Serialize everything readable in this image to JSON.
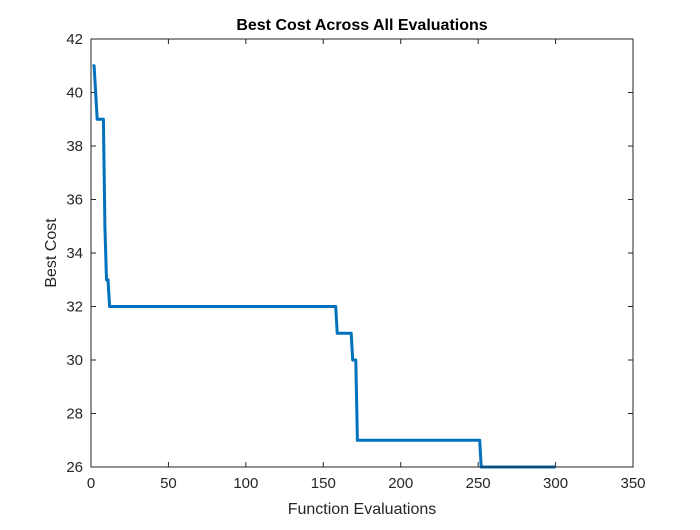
{
  "chart_data": {
    "type": "line",
    "title": "Best Cost Across All Evaluations",
    "xlabel": "Function Evaluations",
    "ylabel": "Best Cost",
    "xlim": [
      0,
      350
    ],
    "ylim": [
      26,
      42
    ],
    "xticks": [
      0,
      50,
      100,
      150,
      200,
      250,
      300,
      350
    ],
    "yticks": [
      26,
      28,
      30,
      32,
      34,
      36,
      38,
      40,
      42
    ],
    "grid": false,
    "legend": "none",
    "line_color": "#0072BD",
    "series": [
      {
        "x": [
          1,
          2,
          4,
          5,
          6,
          7,
          8,
          9,
          10,
          11,
          12,
          13,
          158,
          159,
          168,
          169,
          170,
          171,
          172,
          173,
          251,
          252,
          300
        ],
        "y": [
          41,
          41,
          39,
          39,
          39,
          39,
          39,
          35,
          33,
          33,
          32,
          32,
          32,
          31,
          31,
          30,
          30,
          30,
          27,
          27,
          27,
          26,
          26
        ]
      }
    ]
  }
}
